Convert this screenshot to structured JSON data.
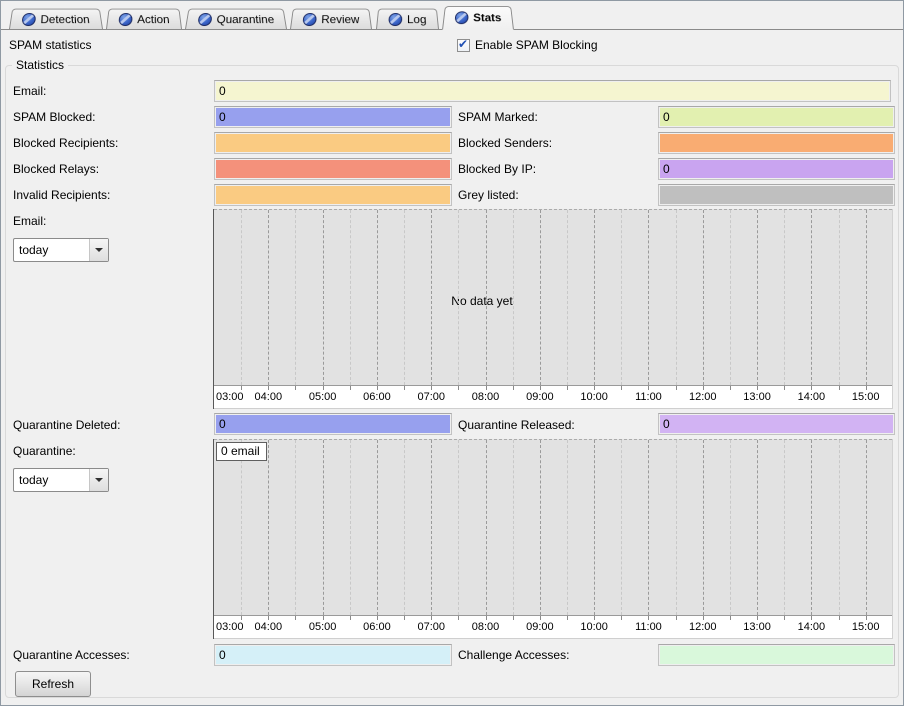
{
  "tabs": {
    "items": [
      {
        "label": "Detection",
        "active": false
      },
      {
        "label": "Action",
        "active": false
      },
      {
        "label": "Quarantine",
        "active": false
      },
      {
        "label": "Review",
        "active": false
      },
      {
        "label": "Log",
        "active": false
      },
      {
        "label": "Stats",
        "active": true
      }
    ],
    "icon": "block-icon"
  },
  "header": {
    "title": "SPAM statistics",
    "enable_label": "Enable SPAM Blocking",
    "enable_checked": true
  },
  "group_title": "Statistics",
  "fields": {
    "email_total": {
      "label": "Email:",
      "value": "0",
      "color": "#F5F5D0"
    },
    "spam_blocked": {
      "label": "SPAM Blocked:",
      "value": "0",
      "color": "#97A0EE"
    },
    "spam_marked": {
      "label": "SPAM Marked:",
      "value": "0",
      "color": "#E2F0B0"
    },
    "blocked_recipients": {
      "label": "Blocked Recipients:",
      "value": "",
      "color": "#FACB82"
    },
    "blocked_senders": {
      "label": "Blocked Senders:",
      "value": "",
      "color": "#F9AC72"
    },
    "blocked_relays": {
      "label": "Blocked Relays:",
      "value": "",
      "color": "#F4917B"
    },
    "blocked_by_ip": {
      "label": "Blocked By IP:",
      "value": "0",
      "color": "#C9A4F0"
    },
    "invalid_recipients": {
      "label": "Invalid Recipients:",
      "value": "",
      "color": "#FACB82"
    },
    "grey_listed": {
      "label": "Grey listed:",
      "value": "",
      "color": "#BFBFBF"
    },
    "quarantine_deleted": {
      "label": "Quarantine Deleted:",
      "value": "0",
      "color": "#97A0EE"
    },
    "quarantine_released": {
      "label": "Quarantine Released:",
      "value": "0",
      "color": "#D2B3F3"
    },
    "quarantine_accesses": {
      "label": "Quarantine Accesses:",
      "value": "0",
      "color": "#D5F0F8"
    },
    "challenge_accesses": {
      "label": "Challenge Accesses:",
      "value": "",
      "color": "#D9F8DB"
    }
  },
  "email_chart": {
    "label": "Email:",
    "period": "today",
    "no_data_text": "No data yet",
    "type": "line",
    "series": [],
    "x_ticks": [
      "03:00",
      "04:00",
      "05:00",
      "06:00",
      "07:00",
      "08:00",
      "09:00",
      "10:00",
      "11:00",
      "12:00",
      "13:00",
      "14:00",
      "15:00"
    ]
  },
  "quarantine_chart": {
    "label": "Quarantine:",
    "period": "today",
    "legend": "0 email",
    "type": "line",
    "series": [],
    "x_ticks": [
      "03:00",
      "04:00",
      "05:00",
      "06:00",
      "07:00",
      "08:00",
      "09:00",
      "10:00",
      "11:00",
      "12:00",
      "13:00",
      "14:00",
      "15:00"
    ]
  },
  "refresh_label": "Refresh"
}
